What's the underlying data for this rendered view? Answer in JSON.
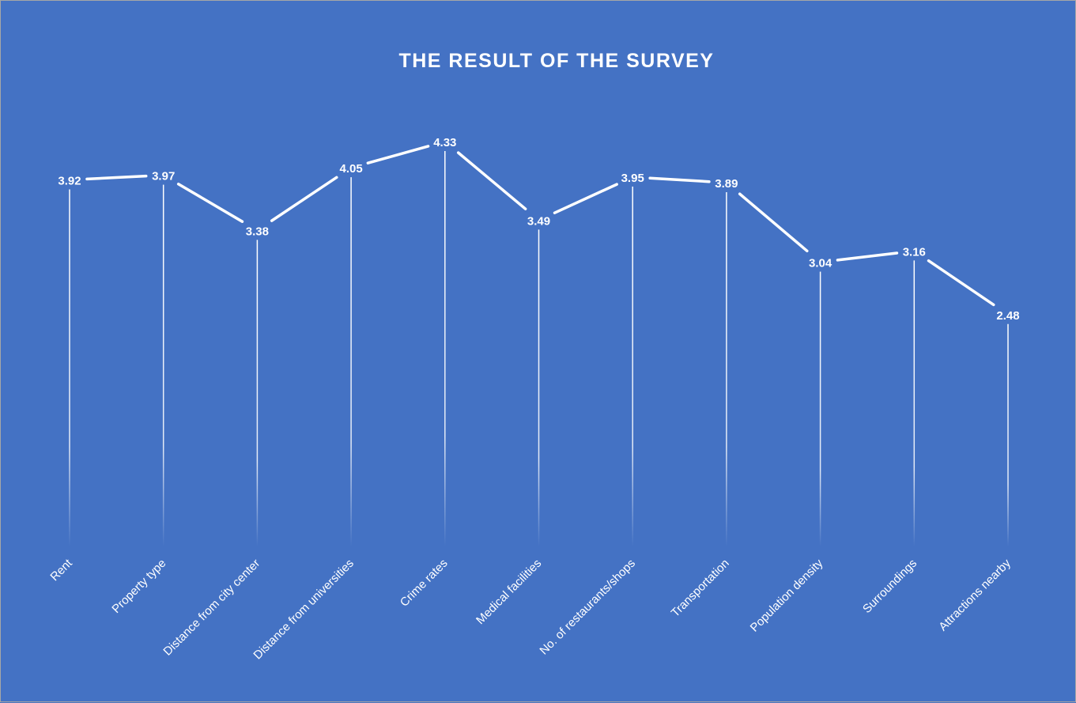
{
  "chart_data": {
    "type": "line",
    "title": "THE RESULT OF THE SURVEY",
    "xlabel": "",
    "ylabel": "",
    "categories": [
      "Rent",
      "Property type",
      "Distance from city center",
      "Distance from universities",
      "Crime rates",
      "Medical facilities",
      "No. of restaurants/shops",
      "Transportation",
      "Population density",
      "Surroundings",
      "Attractions nearby"
    ],
    "series": [
      {
        "values": [
          3.92,
          3.97,
          3.38,
          4.05,
          4.33,
          3.49,
          3.95,
          3.89,
          3.04,
          3.16,
          2.48
        ]
      }
    ],
    "data_labels": [
      "3.92",
      "3.97",
      "3.38",
      "4.05",
      "4.33",
      "3.49",
      "3.95",
      "3.89",
      "3.04",
      "3.16",
      "2.48"
    ],
    "grid": false,
    "legend": "none",
    "drop_lines": true,
    "colors": {
      "background": "#4472c4",
      "line": "#ffffff",
      "text": "#ffffff"
    }
  }
}
